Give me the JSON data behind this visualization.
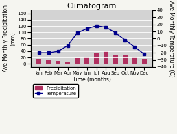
{
  "title": "Climatogram",
  "months": [
    "Jan",
    "Feb",
    "Mar",
    "Apr",
    "May",
    "Jun",
    "Jul",
    "Aug",
    "Sep",
    "Oct",
    "Nov",
    "Dec"
  ],
  "precipitation": [
    15,
    12,
    10,
    8,
    18,
    20,
    35,
    40,
    28,
    30,
    23,
    17
  ],
  "temperature": [
    -20,
    -20,
    -18,
    -10,
    8,
    14,
    18,
    16,
    8,
    -2,
    -12,
    -22
  ],
  "bar_color": "#b03060",
  "line_color": "#00008b",
  "bg_color": "#d3d3d3",
  "fig_bg_color": "#f5f5f0",
  "ylabel_left": "Ave Monthly Precipitation\n(mm)",
  "ylabel_right": "Ave Monthly Temperature (C)",
  "xlabel": "Time (months)",
  "ylim_left": [
    -10,
    170
  ],
  "ylim_right": [
    -40,
    40
  ],
  "yticks_left": [
    0,
    20,
    40,
    60,
    80,
    100,
    120,
    140,
    160
  ],
  "yticks_right": [
    -40,
    -30,
    -20,
    -10,
    0,
    10,
    20,
    30,
    40
  ],
  "title_fontsize": 8,
  "label_fontsize": 5.5,
  "tick_fontsize": 5,
  "legend_fontsize": 5
}
